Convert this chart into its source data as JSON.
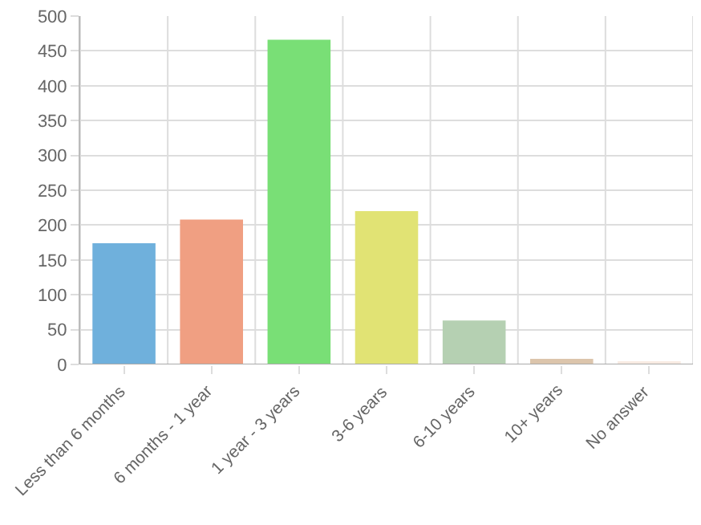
{
  "chart_data": {
    "type": "bar",
    "categories": [
      "Less than 6 months",
      "6 months - 1 year",
      "1 year - 3 years",
      "3-6 years",
      "6-10 years",
      "10+ years",
      "No answer"
    ],
    "values": [
      174,
      208,
      466,
      220,
      63,
      8,
      4
    ],
    "colors": [
      "#6fb0dc",
      "#f09f82",
      "#79df76",
      "#e1e374",
      "#b5d0b2",
      "#dcc5ac",
      "#f8ebe2"
    ],
    "ylim": [
      0,
      500
    ],
    "yticks": [
      0,
      50,
      100,
      150,
      200,
      250,
      300,
      350,
      400,
      450,
      500
    ],
    "grid": true
  }
}
